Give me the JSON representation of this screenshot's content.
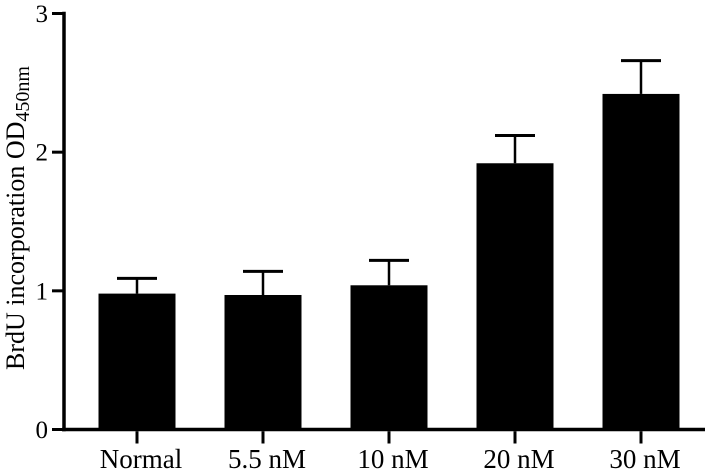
{
  "figure": {
    "background_color": "#ffffff",
    "ink_color": "#000000"
  },
  "chart_data": {
    "type": "bar",
    "title": "",
    "xlabel": "",
    "ylabel": "BrdU incorporation OD",
    "ylabel_subscript": "450nm",
    "categories": [
      "Normal",
      "5.5 nM",
      "10 nM",
      "20 nM",
      "30 nM"
    ],
    "series": [
      {
        "name": "BrdU incorporation",
        "values": [
          0.98,
          0.97,
          1.04,
          1.92,
          2.42
        ],
        "errors_plus": [
          0.11,
          0.17,
          0.18,
          0.2,
          0.24
        ]
      }
    ],
    "yticks": [
      "0",
      "1",
      "2",
      "3"
    ],
    "ytick_values": [
      0,
      1,
      2,
      3
    ],
    "ylim": [
      0,
      3
    ],
    "bar_color": "#000000",
    "axis_color": "#000000",
    "error_bar_style": "upper-T",
    "grid": false,
    "legend_position": "none"
  }
}
